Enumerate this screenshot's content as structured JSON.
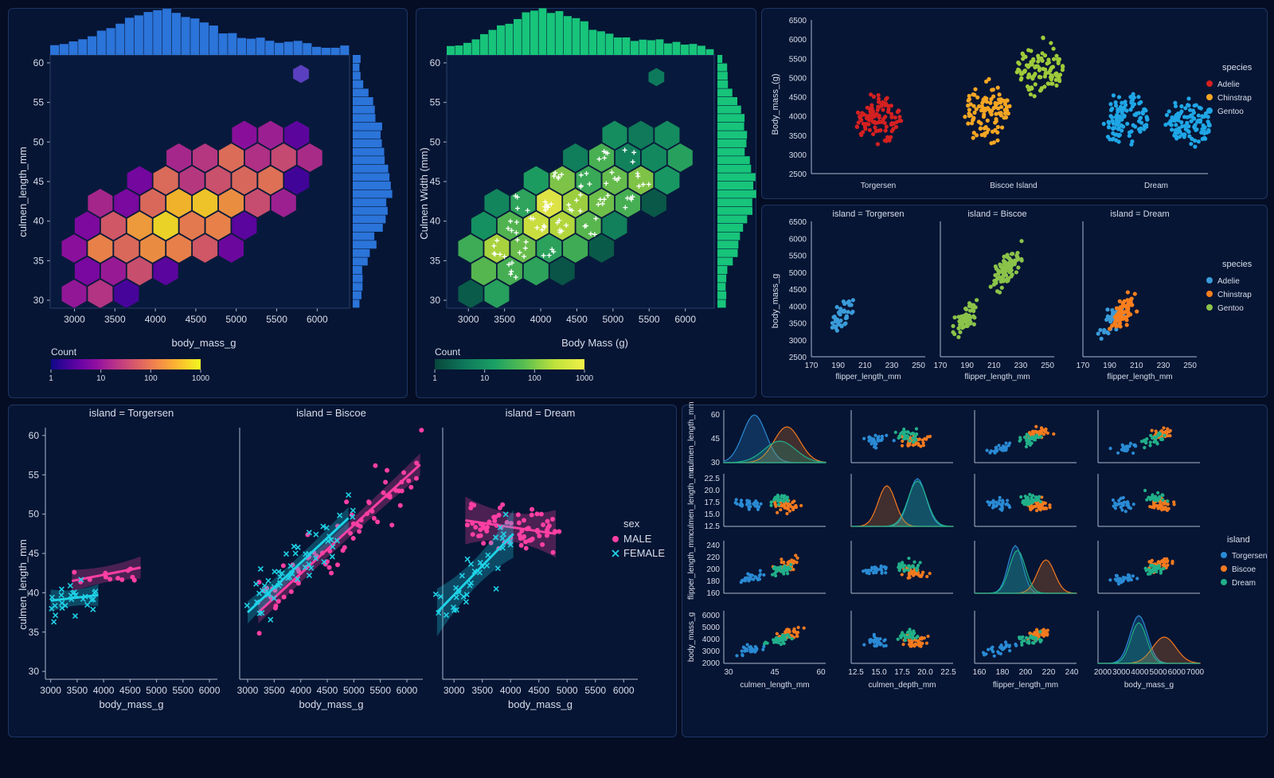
{
  "colors": {
    "bg": "#040d23",
    "panel": "#061534",
    "border": "#1e3563",
    "adelie": "#d42020",
    "chinstrap": "#f5a623",
    "gentoo": "#9ecb3a",
    "sw_blue": "#3a9bd9",
    "sw_orange": "#f97f1e",
    "sw_green": "#8bc34a",
    "male": "#ff3fa4",
    "female": "#1fd1e6",
    "torgersen": "#2a8ad4",
    "biscoe": "#f47a1f",
    "dream": "#21b089",
    "hist_blue": "#2b74d9",
    "hist_green": "#17c47a"
  },
  "hex1": {
    "xlabel": "body_mass_g",
    "ylabel": "culmen_length_mm",
    "xticks": [
      "3000",
      "3500",
      "4000",
      "4500",
      "5000",
      "5500",
      "6000"
    ],
    "yticks": [
      "30",
      "35",
      "40",
      "45",
      "50",
      "55",
      "60"
    ],
    "colorbar_title": "Count",
    "colorbar_ticks": [
      "1",
      "10",
      "100",
      "1000"
    ]
  },
  "hex2": {
    "xlabel": "Body Mass (g)",
    "ylabel": "Culmen Width (mm)",
    "xticks": [
      "3000",
      "3500",
      "4000",
      "4500",
      "5000",
      "5500",
      "6000"
    ],
    "yticks": [
      "30",
      "35",
      "40",
      "45",
      "50",
      "55",
      "60"
    ],
    "colorbar_title": "Count",
    "colorbar_ticks": [
      "1",
      "10",
      "100",
      "1000"
    ]
  },
  "swarm": {
    "ylabel": "Body_mass_(g)",
    "categories": [
      "Torgersen",
      "Biscoe Island",
      "Dream"
    ],
    "yticks": [
      "2500",
      "3000",
      "3500",
      "4000",
      "4500",
      "5000",
      "5500",
      "6000",
      "6500"
    ],
    "legend_title": "species",
    "legend": [
      "Adelie",
      "Chinstrap",
      "Gentoo"
    ]
  },
  "facet": {
    "titles": [
      "island = Torgersen",
      "island = Biscoe",
      "island = Dream"
    ],
    "xlabel": "flipper_length_mm",
    "ylabel": "body_mass_g",
    "xticks": [
      "170",
      "190",
      "210",
      "230",
      "250"
    ],
    "yticks": [
      "2500",
      "3000",
      "3500",
      "4000",
      "4500",
      "5000",
      "5500",
      "6000",
      "6500"
    ],
    "legend_title": "species",
    "legend": [
      "Adelie",
      "Chinstrap",
      "Gentoo"
    ]
  },
  "lm": {
    "titles": [
      "island = Torgersen",
      "island = Biscoe",
      "island = Dream"
    ],
    "xlabel": "body_mass_g",
    "ylabel": "culmen_length_mm",
    "xticks": [
      "3000",
      "3500",
      "4000",
      "4500",
      "5000",
      "5500",
      "6000"
    ],
    "yticks": [
      "30",
      "35",
      "40",
      "45",
      "50",
      "55",
      "60"
    ],
    "legend_title": "sex",
    "legend": [
      "MALE",
      "FEMALE"
    ]
  },
  "pair": {
    "row_labels": [
      "culmen_length_mm",
      "culmen_length_mm",
      "flipper_length_mm",
      "body_mass_g"
    ],
    "col_labels": [
      "culmen_length_mm",
      "culmen_depth_mm",
      "flipper_length_mm",
      "body_mass_g"
    ],
    "row_ticks": [
      [
        "30",
        "45",
        "60"
      ],
      [
        "12.5",
        "15.0",
        "17.5",
        "20.0",
        "22.5"
      ],
      [
        "160",
        "180",
        "200",
        "220",
        "240"
      ],
      [
        "2000",
        "3000",
        "4000",
        "5000",
        "6000"
      ]
    ],
    "col_ticks": [
      [
        "30",
        "45",
        "60"
      ],
      [
        "12.5",
        "15.0",
        "17.5",
        "20.0",
        "22.5"
      ],
      [
        "160",
        "180",
        "200",
        "220",
        "240"
      ],
      [
        "2000",
        "3000",
        "4000",
        "5000",
        "6000",
        "7000"
      ]
    ],
    "legend_title": "island",
    "legend": [
      "Torgersen",
      "Biscoe",
      "Dream"
    ]
  },
  "chart_data": [
    {
      "type": "hexbin",
      "title": "",
      "xlabel": "body_mass_g",
      "ylabel": "culmen_length_mm",
      "xlim": [
        2700,
        6400
      ],
      "ylim": [
        29,
        61
      ],
      "color_scale": "log",
      "colorbar_range": [
        1,
        1000
      ],
      "marginals": "histograms"
    },
    {
      "type": "hexbin",
      "title": "",
      "xlabel": "Body Mass (g)",
      "ylabel": "Culmen Width (mm)",
      "xlim": [
        2700,
        6400
      ],
      "ylim": [
        29,
        61
      ],
      "color_scale": "log",
      "colorbar_range": [
        1,
        1000
      ],
      "marginals": "histograms"
    },
    {
      "type": "scatter",
      "subtype": "swarm",
      "x_categories": [
        "Torgersen",
        "Biscoe Island",
        "Dream"
      ],
      "ylabel": "Body_mass_(g)",
      "ylim": [
        2500,
        6500
      ],
      "series": [
        {
          "name": "Adelie",
          "category": "Torgersen",
          "range": [
            2900,
            5200
          ],
          "center": 3900
        },
        {
          "name": "Chinstrap",
          "category": "Biscoe Island",
          "range": [
            2700,
            5600
          ],
          "center": 4100
        },
        {
          "name": "Gentoo",
          "category": "Biscoe Island",
          "range": [
            3900,
            6500
          ],
          "center": 5200
        },
        {
          "name": "Gentoo",
          "category": "Dream",
          "range": [
            2800,
            5300
          ],
          "center": 3900
        },
        {
          "name": "Gentoo",
          "category": "Dream",
          "range": [
            2800,
            5200
          ],
          "center": 3800
        }
      ]
    },
    {
      "type": "scatter",
      "facets": [
        "island = Torgersen",
        "island = Biscoe",
        "island = Dream"
      ],
      "xlabel": "flipper_length_mm",
      "ylabel": "body_mass_g",
      "xlim": [
        170,
        250
      ],
      "ylim": [
        2500,
        6500
      ],
      "legend": [
        "Adelie",
        "Chinstrap",
        "Gentoo"
      ]
    },
    {
      "type": "scatter",
      "subtype": "lmplot",
      "facets": [
        "island = Torgersen",
        "island = Biscoe",
        "island = Dream"
      ],
      "xlabel": "body_mass_g",
      "ylabel": "culmen_length_mm",
      "xlim": [
        2800,
        6200
      ],
      "ylim": [
        29,
        61
      ],
      "series": [
        {
          "name": "MALE",
          "fits": [
            [
              [
                3400,
                41.5
              ],
              [
                4700,
                43.2
              ]
            ],
            [
              [
                3200,
                37.5
              ],
              [
                6250,
                56.3
              ]
            ],
            [
              [
                3200,
                49.2
              ],
              [
                4800,
                47.5
              ]
            ]
          ]
        },
        {
          "name": "FEMALE",
          "fits": [
            [
              [
                3000,
                39.0
              ],
              [
                3900,
                39.7
              ]
            ],
            [
              [
                3000,
                37.5
              ],
              [
                4900,
                49.5
              ]
            ],
            [
              [
                2700,
                37.5
              ],
              [
                4050,
                47.5
              ]
            ]
          ]
        }
      ]
    },
    {
      "type": "scatter",
      "subtype": "pairplot",
      "variables": [
        "culmen_length_mm",
        "culmen_depth_mm",
        "flipper_length_mm",
        "body_mass_g"
      ],
      "hue": "island",
      "legend": [
        "Torgersen",
        "Biscoe",
        "Dream"
      ],
      "diagonal": "kde"
    }
  ]
}
